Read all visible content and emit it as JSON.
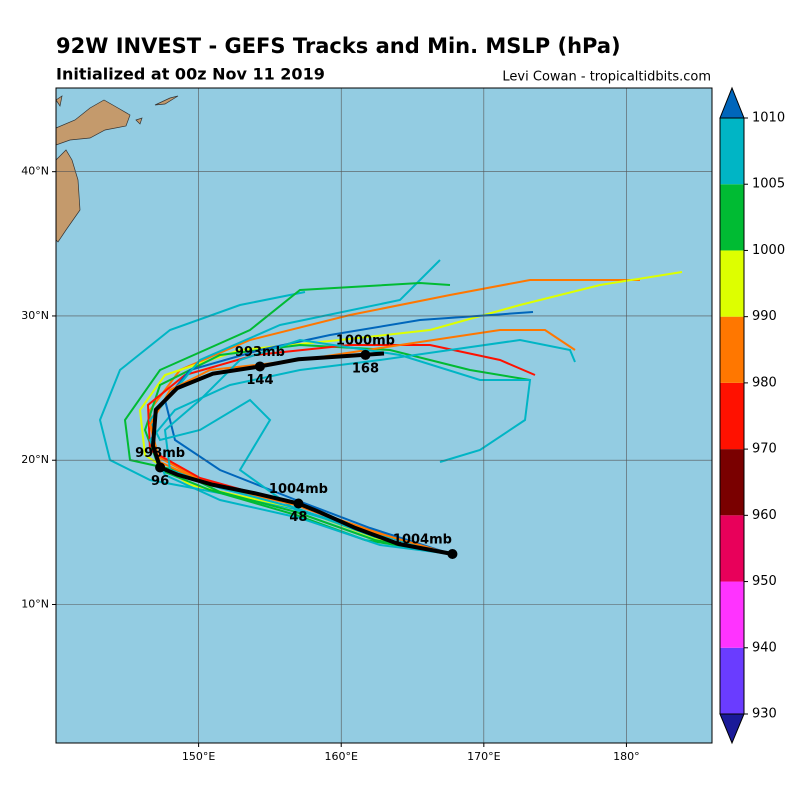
{
  "chart_data": {
    "type": "map",
    "title": "92W INVEST - GEFS Tracks and Min. MSLP (hPa)",
    "subtitle": "Initialized at 00z Nov 11 2019",
    "credit": "Levi Cowan - tropicaltidbits.com",
    "xlim": [
      140,
      186
    ],
    "ylim": [
      0.4,
      45.8
    ],
    "xticks": [
      {
        "value": 150,
        "label": "150°E"
      },
      {
        "value": 160,
        "label": "160°E"
      },
      {
        "value": 170,
        "label": "170°E"
      },
      {
        "value": 180,
        "label": "180°"
      }
    ],
    "yticks": [
      {
        "value": 10,
        "label": "10°N"
      },
      {
        "value": 20,
        "label": "20°N"
      },
      {
        "value": 30,
        "label": "30°N"
      },
      {
        "value": 40,
        "label": "40°N"
      }
    ],
    "grid": true,
    "mean_track": {
      "lon": [
        167.8,
        164,
        161,
        158.5,
        157,
        154,
        151,
        148.5,
        147.3,
        146.8,
        147.0,
        148.5,
        151,
        154.3,
        157,
        160,
        163
      ],
      "lat": [
        13.5,
        14.2,
        15.3,
        16.4,
        17.0,
        17.7,
        18.3,
        19.0,
        19.5,
        21.0,
        23.5,
        25.0,
        26.0,
        26.5,
        27.0,
        27.2,
        27.4
      ]
    },
    "markers": [
      {
        "lon": 167.8,
        "lat": 13.5,
        "pressure": "1004mb"
      },
      {
        "lon": 157.0,
        "lat": 17.0,
        "hour": "48",
        "pressure": "1004mb"
      },
      {
        "lon": 147.3,
        "lat": 19.5,
        "hour": "96",
        "pressure": "998mb"
      },
      {
        "lon": 154.3,
        "lat": 26.5,
        "hour": "144",
        "pressure": "993mb"
      },
      {
        "lon": 161.7,
        "lat": 27.3,
        "hour": "168",
        "pressure": "1000mb"
      }
    ],
    "colorbar": {
      "ticks": [
        930,
        940,
        950,
        960,
        970,
        980,
        990,
        1000,
        1005,
        1010
      ],
      "colors": [
        "#6a3cff",
        "#ff33ff",
        "#e8005a",
        "#7a0000",
        "#ff1100",
        "#ff7700",
        "#ddff00",
        "#00bb33",
        "#00b5c5"
      ],
      "extend_colors": [
        "#1a1a99",
        "#0066bb"
      ]
    }
  }
}
